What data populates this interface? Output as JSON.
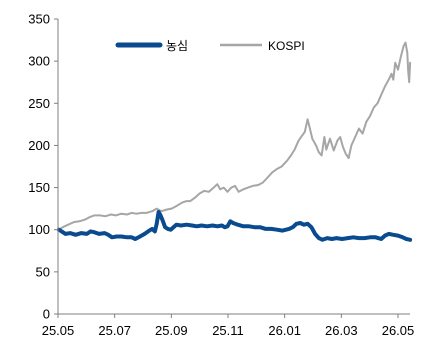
{
  "chart_data": {
    "type": "line",
    "ylim": [
      0,
      350
    ],
    "y_ticks": [
      "0",
      "50",
      "100",
      "150",
      "200",
      "250",
      "300",
      "350"
    ],
    "x_ticks": [
      "25.05",
      "25.07",
      "25.09",
      "25.11",
      "26.01",
      "26.03",
      "26.05"
    ],
    "grid": false,
    "legend_position": "top",
    "series": [
      {
        "name": "농심",
        "color": "#0a4a8f",
        "points": [
          [
            "2025-05-02",
            100
          ],
          [
            "2025-05-05",
            98
          ],
          [
            "2025-05-09",
            95
          ],
          [
            "2025-05-14",
            96
          ],
          [
            "2025-05-20",
            94
          ],
          [
            "2025-05-26",
            96
          ],
          [
            "2025-06-01",
            95
          ],
          [
            "2025-06-05",
            98
          ],
          [
            "2025-06-09",
            97
          ],
          [
            "2025-06-14",
            95
          ],
          [
            "2025-06-20",
            96
          ],
          [
            "2025-06-24",
            94
          ],
          [
            "2025-06-28",
            91
          ],
          [
            "2025-07-03",
            92
          ],
          [
            "2025-07-08",
            92
          ],
          [
            "2025-07-14",
            91
          ],
          [
            "2025-07-19",
            91
          ],
          [
            "2025-07-23",
            89
          ],
          [
            "2025-07-28",
            92
          ],
          [
            "2025-08-02",
            95
          ],
          [
            "2025-08-07",
            99
          ],
          [
            "2025-08-10",
            101
          ],
          [
            "2025-08-13",
            98
          ],
          [
            "2025-08-15",
            107
          ],
          [
            "2025-08-17",
            121
          ],
          [
            "2025-08-19",
            117
          ],
          [
            "2025-08-21",
            112
          ],
          [
            "2025-08-24",
            103
          ],
          [
            "2025-08-27",
            101
          ],
          [
            "2025-08-30",
            100
          ],
          [
            "2025-09-02",
            103
          ],
          [
            "2025-09-05",
            106
          ],
          [
            "2025-09-10",
            105
          ],
          [
            "2025-09-16",
            106
          ],
          [
            "2025-09-22",
            105
          ],
          [
            "2025-09-27",
            104
          ],
          [
            "2025-10-02",
            105
          ],
          [
            "2025-10-08",
            104
          ],
          [
            "2025-10-14",
            105
          ],
          [
            "2025-10-19",
            104
          ],
          [
            "2025-10-24",
            105
          ],
          [
            "2025-10-27",
            103
          ],
          [
            "2025-10-30",
            104
          ],
          [
            "2025-11-02",
            110
          ],
          [
            "2025-11-05",
            108
          ],
          [
            "2025-11-10",
            106
          ],
          [
            "2025-11-16",
            104
          ],
          [
            "2025-11-22",
            104
          ],
          [
            "2025-11-28",
            103
          ],
          [
            "2025-12-04",
            103
          ],
          [
            "2025-12-10",
            101
          ],
          [
            "2025-12-16",
            101
          ],
          [
            "2025-12-22",
            100
          ],
          [
            "2025-12-28",
            99
          ],
          [
            "2026-01-04",
            101
          ],
          [
            "2026-01-08",
            103
          ],
          [
            "2026-01-12",
            107
          ],
          [
            "2026-01-16",
            108
          ],
          [
            "2026-01-20",
            106
          ],
          [
            "2026-01-24",
            107
          ],
          [
            "2026-01-28",
            103
          ],
          [
            "2026-02-01",
            95
          ],
          [
            "2026-02-05",
            90
          ],
          [
            "2026-02-09",
            88
          ],
          [
            "2026-02-14",
            90
          ],
          [
            "2026-02-19",
            89
          ],
          [
            "2026-02-24",
            90
          ],
          [
            "2026-03-02",
            89
          ],
          [
            "2026-03-08",
            90
          ],
          [
            "2026-03-14",
            91
          ],
          [
            "2026-03-20",
            90
          ],
          [
            "2026-03-26",
            90
          ],
          [
            "2026-04-01",
            91
          ],
          [
            "2026-04-07",
            91
          ],
          [
            "2026-04-13",
            89
          ],
          [
            "2026-04-17",
            93
          ],
          [
            "2026-04-21",
            95
          ],
          [
            "2026-04-26",
            94
          ],
          [
            "2026-05-01",
            93
          ],
          [
            "2026-05-06",
            91
          ],
          [
            "2026-05-10",
            89
          ],
          [
            "2026-05-14",
            88
          ]
        ]
      },
      {
        "name": "KOSPI",
        "color": "#a6a6a6",
        "points": [
          [
            "2025-05-02",
            100
          ],
          [
            "2025-05-06",
            103
          ],
          [
            "2025-05-12",
            106
          ],
          [
            "2025-05-18",
            109
          ],
          [
            "2025-05-24",
            110
          ],
          [
            "2025-05-30",
            112
          ],
          [
            "2025-06-04",
            115
          ],
          [
            "2025-06-09",
            117
          ],
          [
            "2025-06-15",
            117
          ],
          [
            "2025-06-21",
            116
          ],
          [
            "2025-06-27",
            118
          ],
          [
            "2025-07-02",
            117
          ],
          [
            "2025-07-08",
            119
          ],
          [
            "2025-07-14",
            118
          ],
          [
            "2025-07-19",
            120
          ],
          [
            "2025-07-24",
            119
          ],
          [
            "2025-07-30",
            120
          ],
          [
            "2025-08-04",
            120
          ],
          [
            "2025-08-10",
            122
          ],
          [
            "2025-08-15",
            125
          ],
          [
            "2025-08-20",
            122
          ],
          [
            "2025-08-26",
            124
          ],
          [
            "2025-08-31",
            125
          ],
          [
            "2025-09-05",
            128
          ],
          [
            "2025-09-11",
            132
          ],
          [
            "2025-09-16",
            134
          ],
          [
            "2025-09-20",
            134
          ],
          [
            "2025-09-25",
            138
          ],
          [
            "2025-09-30",
            143
          ],
          [
            "2025-10-05",
            146
          ],
          [
            "2025-10-10",
            145
          ],
          [
            "2025-10-15",
            150
          ],
          [
            "2025-10-19",
            154
          ],
          [
            "2025-10-22",
            148
          ],
          [
            "2025-10-26",
            150
          ],
          [
            "2025-10-30",
            145
          ],
          [
            "2025-11-03",
            150
          ],
          [
            "2025-11-07",
            152
          ],
          [
            "2025-11-11",
            145
          ],
          [
            "2025-11-16",
            148
          ],
          [
            "2025-11-21",
            150
          ],
          [
            "2025-11-26",
            152
          ],
          [
            "2025-12-02",
            153
          ],
          [
            "2025-12-07",
            156
          ],
          [
            "2025-12-12",
            162
          ],
          [
            "2025-12-17",
            168
          ],
          [
            "2025-12-22",
            172
          ],
          [
            "2025-12-27",
            175
          ],
          [
            "2026-01-02",
            182
          ],
          [
            "2026-01-06",
            188
          ],
          [
            "2026-01-10",
            195
          ],
          [
            "2026-01-14",
            205
          ],
          [
            "2026-01-17",
            210
          ],
          [
            "2026-01-21",
            216
          ],
          [
            "2026-01-24",
            231
          ],
          [
            "2026-01-26",
            222
          ],
          [
            "2026-01-29",
            208
          ],
          [
            "2026-02-02",
            200
          ],
          [
            "2026-02-05",
            192
          ],
          [
            "2026-02-08",
            188
          ],
          [
            "2026-02-11",
            210
          ],
          [
            "2026-02-13",
            195
          ],
          [
            "2026-02-17",
            208
          ],
          [
            "2026-02-21",
            194
          ],
          [
            "2026-02-25",
            206
          ],
          [
            "2026-02-28",
            210
          ],
          [
            "2026-03-03",
            198
          ],
          [
            "2026-03-06",
            190
          ],
          [
            "2026-03-09",
            185
          ],
          [
            "2026-03-12",
            200
          ],
          [
            "2026-03-16",
            210
          ],
          [
            "2026-03-20",
            220
          ],
          [
            "2026-03-24",
            214
          ],
          [
            "2026-03-28",
            228
          ],
          [
            "2026-04-01",
            235
          ],
          [
            "2026-04-05",
            245
          ],
          [
            "2026-04-09",
            250
          ],
          [
            "2026-04-13",
            260
          ],
          [
            "2026-04-17",
            270
          ],
          [
            "2026-04-21",
            278
          ],
          [
            "2026-04-24",
            285
          ],
          [
            "2026-04-26",
            278
          ],
          [
            "2026-04-28",
            298
          ],
          [
            "2026-05-01",
            290
          ],
          [
            "2026-05-04",
            305
          ],
          [
            "2026-05-07",
            318
          ],
          [
            "2026-05-09",
            322
          ],
          [
            "2026-05-11",
            310
          ],
          [
            "2026-05-12",
            288
          ],
          [
            "2026-05-13",
            275
          ],
          [
            "2026-05-14",
            298
          ]
        ]
      }
    ]
  }
}
